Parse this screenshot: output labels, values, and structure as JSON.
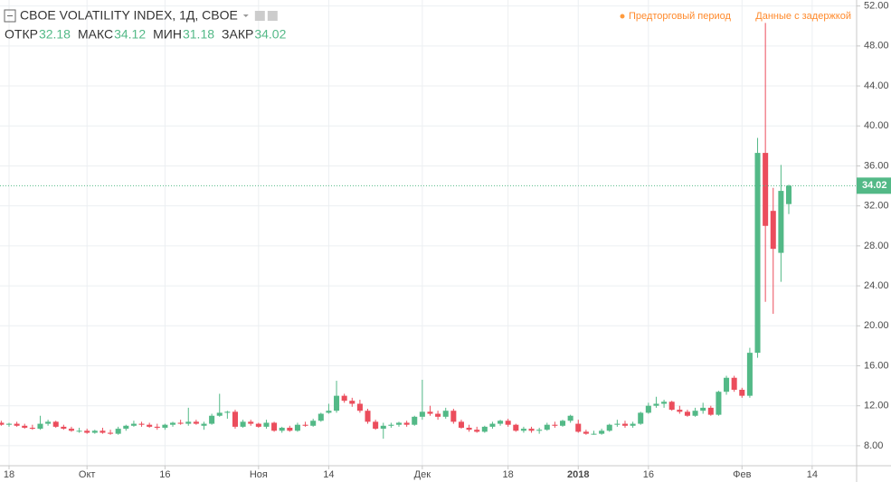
{
  "chart_data": {
    "type": "candlestick",
    "title": "CBOE VOLATILITY INDEX, 1Д, CBOE",
    "header_labels": [
      "ОТКР",
      "МАКС",
      "МИН",
      "ЗАКР"
    ],
    "annotations": [
      "Предторговый период",
      "Данные с задержкой"
    ],
    "up_color": "#53b987",
    "down_color": "#eb4d5c",
    "grid": true,
    "open": [
      10.3,
      10.1,
      10.2,
      10.0,
      9.8,
      9.7,
      10.2,
      10.4,
      9.9,
      9.7,
      9.5,
      9.5,
      9.3,
      9.5,
      9.3,
      9.2,
      9.7,
      10.0,
      10.2,
      10.1,
      9.9,
      9.8,
      10.1,
      10.3,
      10.2,
      10.4,
      10.0,
      10.2,
      11.0,
      11.3,
      11.4,
      9.9,
      10.4,
      10.2,
      9.9,
      10.3,
      9.5,
      9.8,
      9.5,
      10.1,
      10.0,
      10.5,
      11.3,
      11.5,
      13.0,
      12.5,
      12.2,
      11.5,
      10.4,
      9.7,
      10.0,
      10.1,
      10.3,
      10.1,
      10.9,
      11.4,
      11.2,
      10.9,
      11.5,
      10.4,
      9.8,
      9.6,
      9.4,
      9.9,
      10.2,
      10.5,
      10.1,
      9.5,
      9.7,
      9.5,
      9.6,
      10.1,
      10.0,
      10.5,
      10.2,
      9.4,
      9.2,
      9.2,
      9.5,
      10.1,
      10.2,
      10.0,
      10.2,
      11.3,
      12.0,
      12.2,
      12.4,
      11.6,
      11.4,
      11.0,
      11.5,
      11.8,
      11.1,
      13.4,
      14.8,
      13.6,
      13.0,
      17.3,
      37.3,
      31.5,
      27.3,
      32.18
    ],
    "high": [
      10.5,
      10.3,
      10.4,
      10.2,
      10.1,
      11.0,
      10.6,
      10.5,
      10.1,
      9.9,
      9.8,
      9.7,
      9.6,
      9.8,
      9.6,
      9.9,
      10.1,
      10.5,
      10.4,
      10.3,
      10.2,
      10.2,
      10.4,
      10.6,
      11.8,
      10.6,
      10.4,
      11.2,
      13.2,
      11.5,
      11.6,
      10.6,
      10.6,
      10.3,
      10.6,
      10.4,
      9.9,
      10.0,
      10.3,
      10.4,
      10.7,
      11.3,
      12.2,
      14.5,
      13.2,
      12.8,
      12.6,
      11.7,
      10.6,
      10.3,
      10.3,
      10.4,
      10.5,
      11.0,
      14.6,
      12.0,
      11.5,
      11.8,
      11.7,
      10.6,
      10.1,
      9.9,
      10.0,
      10.4,
      10.6,
      10.7,
      10.2,
      9.9,
      9.9,
      9.8,
      10.3,
      10.4,
      10.6,
      11.1,
      10.6,
      9.6,
      9.5,
      9.7,
      10.2,
      10.6,
      10.5,
      10.4,
      11.4,
      12.3,
      12.9,
      12.6,
      12.5,
      12.0,
      11.6,
      11.8,
      12.3,
      12.0,
      13.5,
      15.0,
      15.0,
      13.8,
      17.8,
      38.8,
      50.3,
      33.8,
      36.1,
      34.12
    ],
    "low": [
      10.0,
      9.9,
      9.9,
      9.7,
      9.6,
      9.6,
      10.0,
      9.8,
      9.6,
      9.4,
      9.3,
      9.2,
      9.2,
      9.2,
      9.1,
      9.1,
      9.5,
      9.9,
      9.9,
      9.8,
      9.6,
      9.6,
      9.9,
      10.1,
      10.0,
      10.1,
      9.6,
      10.1,
      10.9,
      10.7,
      9.7,
      9.8,
      10.0,
      9.8,
      9.7,
      9.4,
      9.3,
      9.4,
      9.4,
      9.9,
      9.9,
      10.4,
      11.2,
      11.3,
      12.3,
      11.9,
      11.3,
      10.2,
      9.6,
      8.7,
      9.8,
      9.9,
      9.9,
      10.0,
      10.6,
      11.0,
      10.6,
      10.7,
      10.2,
      9.7,
      9.4,
      9.3,
      9.3,
      9.7,
      10.0,
      9.9,
      9.4,
      9.3,
      9.3,
      9.2,
      9.5,
      9.8,
      9.9,
      10.3,
      9.3,
      9.1,
      9.1,
      9.1,
      9.4,
      9.9,
      9.8,
      9.8,
      10.1,
      11.2,
      11.8,
      11.8,
      11.5,
      11.2,
      10.9,
      10.9,
      11.2,
      11.0,
      11.0,
      13.1,
      13.4,
      12.8,
      12.8,
      16.8,
      22.4,
      21.2,
      24.4,
      31.18
    ],
    "close": [
      10.1,
      10.2,
      10.0,
      9.8,
      9.7,
      10.2,
      10.4,
      9.9,
      9.7,
      9.5,
      9.5,
      9.3,
      9.5,
      9.3,
      9.2,
      9.7,
      10.0,
      10.2,
      10.1,
      9.9,
      9.8,
      10.1,
      10.3,
      10.2,
      10.4,
      10.2,
      10.2,
      11.0,
      11.3,
      11.4,
      9.9,
      10.4,
      10.2,
      9.9,
      10.3,
      9.5,
      9.8,
      9.5,
      10.1,
      10.0,
      10.5,
      11.2,
      11.5,
      13.0,
      12.5,
      12.2,
      11.5,
      10.4,
      9.7,
      10.0,
      10.1,
      10.3,
      10.1,
      10.9,
      11.4,
      11.2,
      10.9,
      11.5,
      10.4,
      9.8,
      9.6,
      9.4,
      9.9,
      10.2,
      10.5,
      10.1,
      9.5,
      9.7,
      9.5,
      9.6,
      10.1,
      10.0,
      10.5,
      11.0,
      9.4,
      9.2,
      9.2,
      9.5,
      10.1,
      10.2,
      10.0,
      10.2,
      11.3,
      12.0,
      12.2,
      12.4,
      11.6,
      11.4,
      11.0,
      11.5,
      11.8,
      11.1,
      13.4,
      14.8,
      13.6,
      13.0,
      17.3,
      37.3,
      30.0,
      27.7,
      33.5,
      34.02
    ],
    "xlim": [
      -0.16,
      109.7
    ],
    "xticks": [
      {
        "value": 1,
        "label": "18"
      },
      {
        "value": 11,
        "label": "Окт"
      },
      {
        "value": 21,
        "label": "16"
      },
      {
        "value": 33,
        "label": "Ноя"
      },
      {
        "value": 42,
        "label": "14"
      },
      {
        "value": 54,
        "label": "Дек"
      },
      {
        "value": 65,
        "label": "18"
      },
      {
        "value": 74,
        "label": "2018"
      },
      {
        "value": 83,
        "label": "16"
      },
      {
        "value": 95,
        "label": "Фев"
      },
      {
        "value": 104,
        "label": "14"
      }
    ],
    "ylim": [
      6.0,
      52.6
    ],
    "yticks": [
      {
        "value": 8,
        "label": "8.00"
      },
      {
        "value": 12,
        "label": "12.00"
      },
      {
        "value": 16,
        "label": "16.00"
      },
      {
        "value": 20,
        "label": "20.00"
      },
      {
        "value": 24,
        "label": "24.00"
      },
      {
        "value": 28,
        "label": "28.00"
      },
      {
        "value": 32,
        "label": "32.00"
      },
      {
        "value": 36,
        "label": "36.00"
      },
      {
        "value": 40,
        "label": "40.00"
      },
      {
        "value": 44,
        "label": "44.00"
      },
      {
        "value": 48,
        "label": "48.00"
      },
      {
        "value": 52,
        "label": "52.00"
      }
    ]
  }
}
